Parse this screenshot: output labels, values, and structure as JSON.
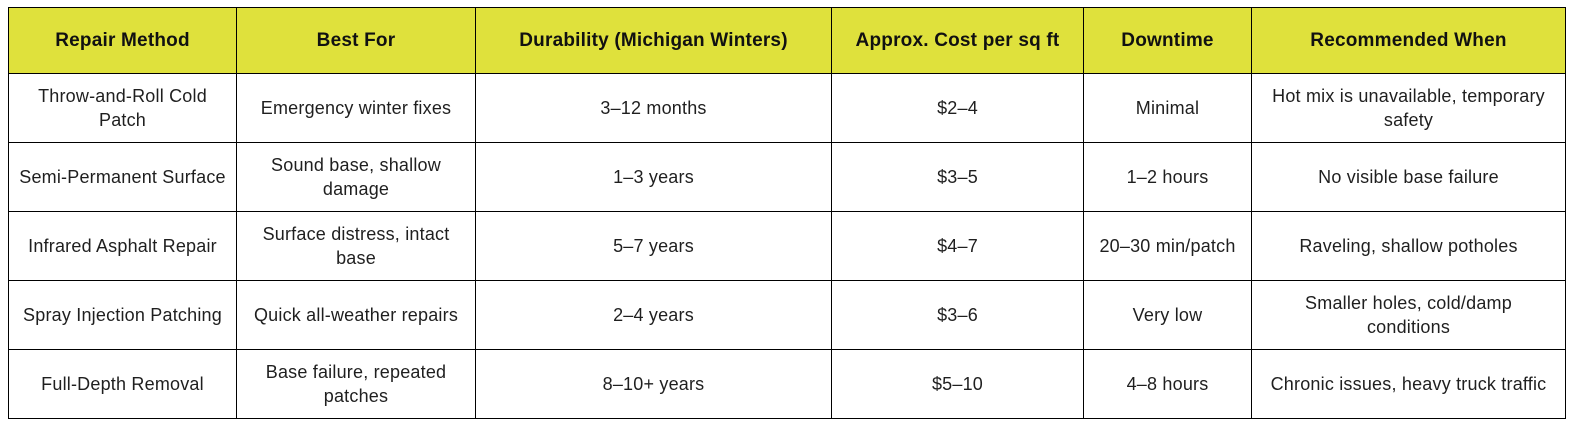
{
  "theme": {
    "page_bg": "#ffffff",
    "header_bg": "#dfe13c",
    "header_text": "#111111",
    "body_text": "#1f1f1f",
    "border": "#000000"
  },
  "table": {
    "headers": [
      "Repair Method",
      "Best For",
      "Durability (Michigan Winters)",
      "Approx. Cost per sq ft",
      "Downtime",
      "Recommended When"
    ],
    "rows": [
      [
        "Throw-and-Roll Cold Patch",
        "Emergency winter fixes",
        "3–12 months",
        "$2–4",
        "Minimal",
        "Hot mix is unavailable, temporary safety"
      ],
      [
        "Semi-Permanent Surface",
        "Sound base, shallow damage",
        "1–3 years",
        "$3–5",
        "1–2 hours",
        "No visible base failure"
      ],
      [
        "Infrared Asphalt Repair",
        "Surface distress, intact base",
        "5–7 years",
        "$4–7",
        "20–30 min/patch",
        "Raveling, shallow potholes"
      ],
      [
        "Spray Injection Patching",
        "Quick all-weather repairs",
        "2–4 years",
        "$3–6",
        "Very low",
        "Smaller holes, cold/damp conditions"
      ],
      [
        "Full-Depth Removal",
        "Base failure, repeated patches",
        "8–10+ years",
        "$5–10",
        "4–8 hours",
        "Chronic issues, heavy truck traffic"
      ]
    ]
  }
}
